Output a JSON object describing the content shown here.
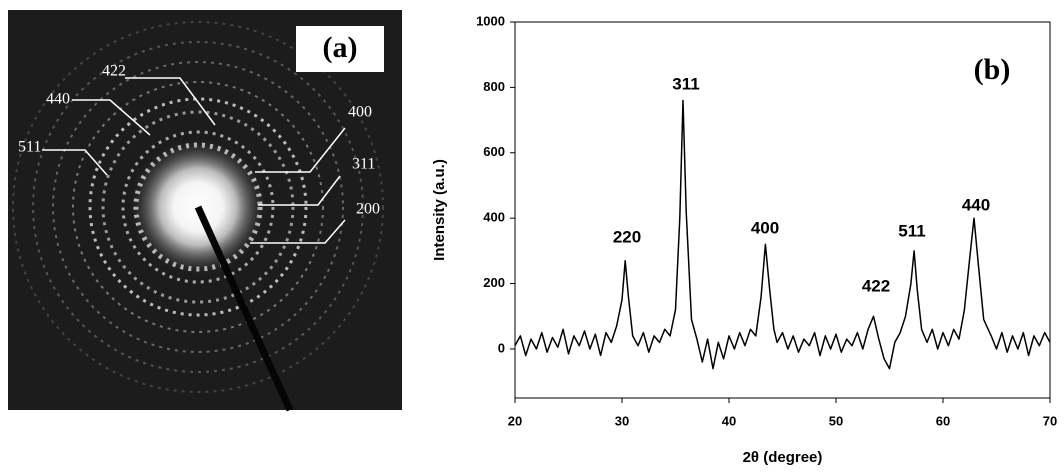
{
  "panel_a": {
    "label": "(a)",
    "ring_labels": [
      "422",
      "440",
      "511",
      "400",
      "311",
      "200"
    ]
  },
  "chart_data": {
    "type": "line",
    "panel_label": "(b)",
    "x_label": "2θ (degree)",
    "y_label": "Intensity (a.u.)",
    "annotations": [
      "220",
      "311",
      "400",
      "422",
      "511",
      "440"
    ],
    "xlim": [
      20,
      70
    ],
    "xticks": [
      20,
      30,
      40,
      50,
      60,
      70
    ],
    "ylim": [
      -150,
      1000
    ],
    "yticks": [
      0,
      200,
      400,
      600,
      800,
      1000
    ],
    "color": "#000000",
    "x": [
      20,
      20.5,
      21,
      21.5,
      22,
      22.5,
      23,
      23.5,
      24,
      24.5,
      25,
      25.5,
      26,
      26.5,
      27,
      27.5,
      28,
      28.5,
      29,
      29.5,
      30,
      30.3,
      30.6,
      31,
      31.5,
      32,
      32.5,
      33,
      33.5,
      34,
      34.5,
      35,
      35.4,
      35.7,
      36,
      36.5,
      37,
      37.5,
      38,
      38.5,
      39,
      39.5,
      40,
      40.5,
      41,
      41.5,
      42,
      42.5,
      43,
      43.4,
      43.8,
      44.2,
      44.5,
      45,
      45.5,
      46,
      46.5,
      47,
      47.5,
      48,
      48.5,
      49,
      49.5,
      50,
      50.5,
      51,
      51.5,
      52,
      52.5,
      53,
      53.5,
      54,
      54.5,
      55,
      55.5,
      56,
      56.5,
      57,
      57.3,
      57.6,
      58,
      58.5,
      59,
      59.5,
      60,
      60.5,
      61,
      61.5,
      62,
      62.5,
      62.9,
      63.3,
      63.8,
      64.5,
      65,
      65.5,
      66,
      66.5,
      67,
      67.5,
      68,
      68.5,
      69,
      69.5,
      70
    ],
    "values": [
      10,
      40,
      -20,
      30,
      0,
      50,
      -10,
      35,
      5,
      60,
      -15,
      40,
      10,
      55,
      0,
      45,
      -20,
      50,
      20,
      70,
      150,
      270,
      160,
      40,
      10,
      50,
      -10,
      40,
      20,
      60,
      40,
      120,
      400,
      760,
      420,
      90,
      30,
      -40,
      30,
      -60,
      20,
      -30,
      40,
      0,
      50,
      10,
      60,
      40,
      160,
      320,
      180,
      60,
      20,
      50,
      0,
      40,
      -10,
      30,
      10,
      50,
      -20,
      40,
      0,
      45,
      -10,
      30,
      10,
      50,
      0,
      60,
      100,
      30,
      -30,
      -60,
      20,
      50,
      100,
      200,
      300,
      180,
      60,
      20,
      60,
      0,
      50,
      10,
      60,
      30,
      120,
      280,
      400,
      260,
      90,
      40,
      0,
      50,
      -10,
      40,
      0,
      50,
      -20,
      40,
      10,
      50,
      20
    ]
  }
}
